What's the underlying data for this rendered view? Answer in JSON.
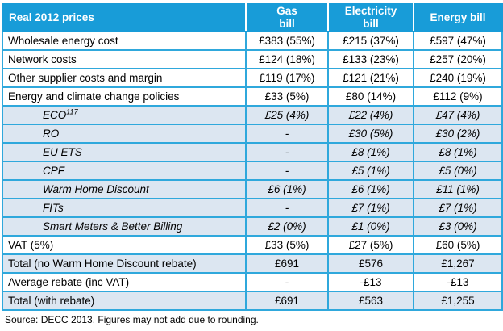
{
  "colors": {
    "header_bg": "#189CD8",
    "border": "#2FA8DC",
    "subrow_bg": "#DCE6F1",
    "header_text": "#FFFFFF"
  },
  "source_note": "Source: DECC 2013. Figures may not add due to rounding.",
  "table": {
    "header": {
      "label": "Real 2012 prices",
      "gas": "Gas\nbill",
      "electricity": "Electricity\nbill",
      "energy": "Energy bill"
    },
    "rows": [
      {
        "label": "Wholesale energy cost",
        "gas": "£383 (55%)",
        "electricity": "£215 (37%)",
        "energy": "£597 (47%)"
      },
      {
        "label": "Network costs",
        "gas": "£124 (18%)",
        "electricity": "£133 (23%)",
        "energy": "£257 (20%)"
      },
      {
        "label": "Other supplier costs and margin",
        "gas": "£119 (17%)",
        "electricity": "£121 (21%)",
        "energy": "£240 (19%)"
      },
      {
        "label": "Energy and climate change policies",
        "gas": "£33 (5%)",
        "electricity": "£80 (14%)",
        "energy": "£112 (9%)"
      },
      {
        "label": "ECO",
        "sup": "117",
        "gas": "£25 (4%)",
        "electricity": "£22 (4%)",
        "energy": "£47 (4%)"
      },
      {
        "label": "RO",
        "gas": "-",
        "electricity": "£30 (5%)",
        "energy": "£30 (2%)"
      },
      {
        "label": "EU ETS",
        "gas": "-",
        "electricity": "£8 (1%)",
        "energy": "£8 (1%)"
      },
      {
        "label": "CPF",
        "gas": "-",
        "electricity": "£5 (1%)",
        "energy": "£5 (0%)"
      },
      {
        "label": "Warm Home Discount",
        "gas": "£6 (1%)",
        "electricity": "£6 (1%)",
        "energy": "£11 (1%)"
      },
      {
        "label": "FITs",
        "gas": "-",
        "electricity": "£7 (1%)",
        "energy": "£7 (1%)"
      },
      {
        "label": "Smart Meters & Better Billing",
        "gas": "£2 (0%)",
        "electricity": "£1 (0%)",
        "energy": "£3 (0%)"
      },
      {
        "label": "VAT (5%)",
        "gas": "£33 (5%)",
        "electricity": "£27 (5%)",
        "energy": "£60 (5%)"
      },
      {
        "label": "Total (no Warm Home Discount rebate)",
        "gas": "£691",
        "electricity": "£576",
        "energy": "£1,267"
      },
      {
        "label": "Average rebate (inc VAT)",
        "gas": "-",
        "electricity": "-£13",
        "energy": "-£13"
      },
      {
        "label": "Total (with rebate)",
        "gas": "£691",
        "electricity": "£563",
        "energy": "£1,255"
      }
    ]
  }
}
